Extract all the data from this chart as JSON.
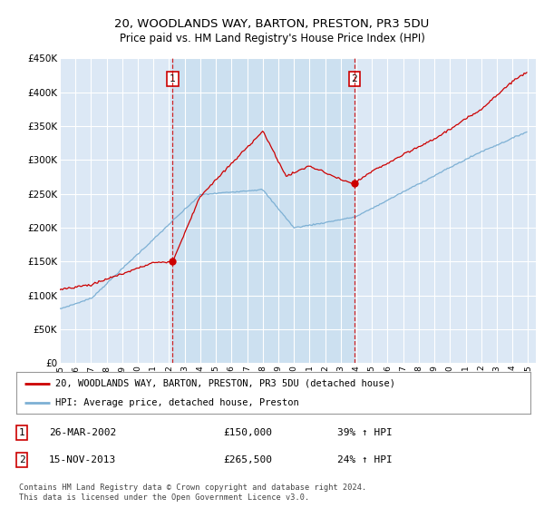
{
  "title": "20, WOODLANDS WAY, BARTON, PRESTON, PR3 5DU",
  "subtitle": "Price paid vs. HM Land Registry's House Price Index (HPI)",
  "legend_property": "20, WOODLANDS WAY, BARTON, PRESTON, PR3 5DU (detached house)",
  "legend_hpi": "HPI: Average price, detached house, Preston",
  "footer": "Contains HM Land Registry data © Crown copyright and database right 2024.\nThis data is licensed under the Open Government Licence v3.0.",
  "sale1_date": "26-MAR-2002",
  "sale1_price": "£150,000",
  "sale1_hpi": "39% ↑ HPI",
  "sale2_date": "15-NOV-2013",
  "sale2_price": "£265,500",
  "sale2_hpi": "24% ↑ HPI",
  "sale1_year": 2002.23,
  "sale2_year": 2013.88,
  "sale1_value": 150000,
  "sale2_value": 265500,
  "background_color": "#dce8f5",
  "highlight_color": "#cce0f0",
  "hpi_color": "#7db0d4",
  "property_color": "#cc0000",
  "marker_color": "#cc0000",
  "dashed_color": "#cc0000",
  "ylim_min": 0,
  "ylim_max": 450000,
  "xmin": 1995,
  "xmax": 2025.5
}
